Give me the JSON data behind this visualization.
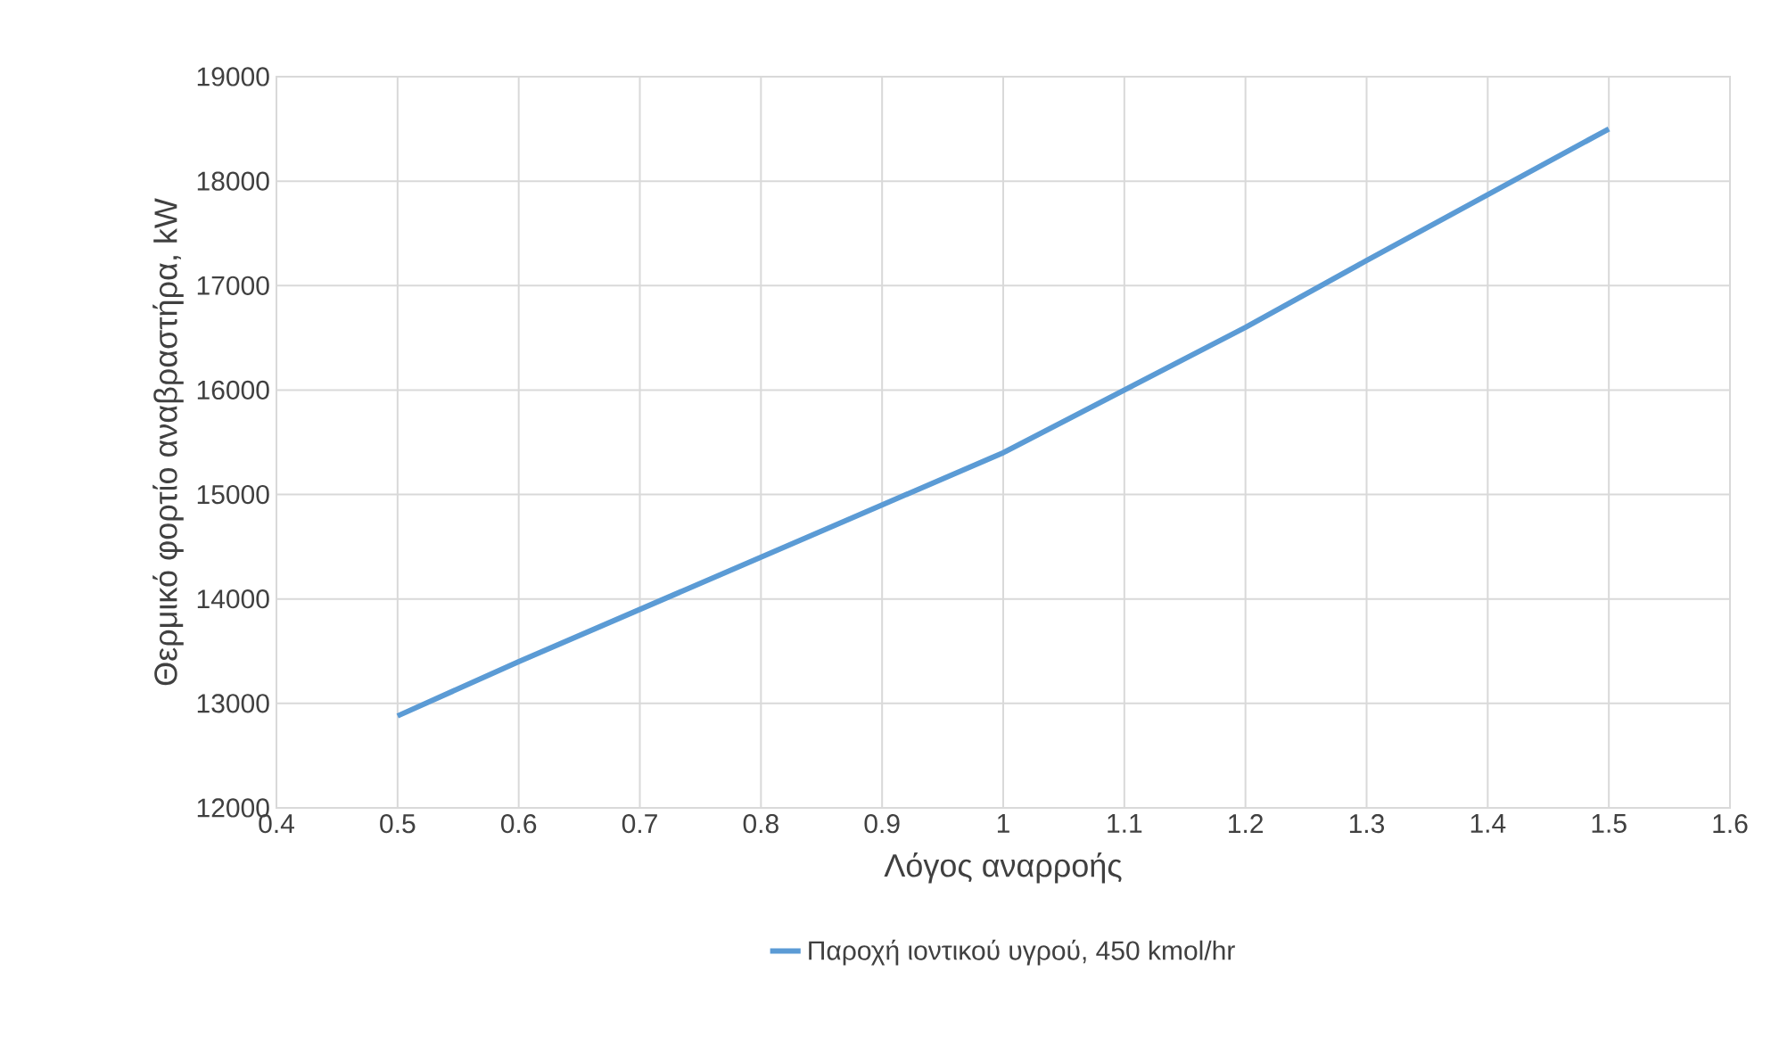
{
  "chart_data": {
    "type": "line",
    "xlabel": "Λόγος αναρροής",
    "ylabel": "Θερμικό φορτίο αναβραστήρα, kW",
    "x": [
      0.5,
      0.6,
      0.7,
      0.8,
      0.9,
      1.0,
      1.1,
      1.2,
      1.3,
      1.4,
      1.5
    ],
    "series": [
      {
        "name": "Παροχή ιοντικού υγρού, 450 kmol/hr",
        "color": "#5b9bd5",
        "values": [
          12880,
          13400,
          13900,
          14400,
          14900,
          15400,
          16000,
          16600,
          17240,
          17870,
          18500
        ]
      }
    ],
    "xlim": [
      0.4,
      1.6
    ],
    "xticks": [
      0.4,
      0.5,
      0.6,
      0.7,
      0.8,
      0.9,
      1,
      1.1,
      1.2,
      1.3,
      1.4,
      1.5,
      1.6
    ],
    "ylim": [
      12000,
      19000
    ],
    "yticks": [
      12000,
      13000,
      14000,
      15000,
      16000,
      17000,
      18000,
      19000
    ],
    "grid": true,
    "legend": "bottom",
    "marker": "none",
    "line_style": "solid"
  }
}
